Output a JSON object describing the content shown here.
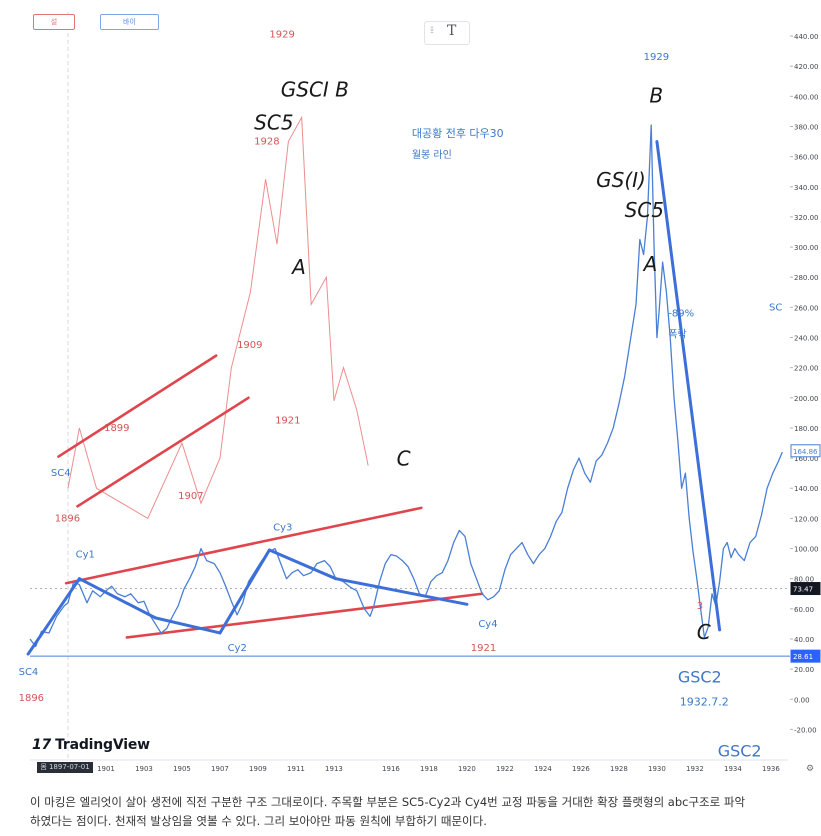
{
  "ui": {
    "top_button_1": "설",
    "top_button_2": "바이",
    "text_tool": "T",
    "tv_mark": "17",
    "tv_brand": "TradingView",
    "x_range_start": "몸 1897-07-01"
  },
  "caption": {
    "line1": "이 마킹은 엘리엇이 살아 생전에 직전 구분한 구조 그대로이다. 주목할 부분은 SC5-Cy2과 Cy4번 교정 파동을 거대한 확장 플랫형의 abc구조로 파악",
    "line2": "하였다는 점이다. 천재적 발상임을 엿볼 수 있다. 그리 보아야만 파동 원칙에 부합하기 때문이다."
  },
  "chart_data": {
    "type": "line",
    "x_label_left": "SC4",
    "xlim": [
      1897.0,
      1936.9
    ],
    "ylim": [
      -30,
      445
    ],
    "y_ticks": [
      440,
      420,
      400,
      380,
      360,
      340,
      320,
      300,
      280,
      260,
      240,
      220,
      200,
      180,
      160,
      140,
      120,
      100,
      80,
      60,
      40,
      20,
      0,
      -20
    ],
    "y_tick_labels": [
      "440.00",
      "420.00",
      "400.00",
      "380.00",
      "360.00",
      "340.00",
      "320.00",
      "300.00",
      "280.00",
      "260.00",
      "240.00",
      "220.00",
      "200.00",
      "180.00",
      "160.00",
      "140.00",
      "120.00",
      "100.00",
      "80.00",
      "60.00",
      "40.00",
      "20.00",
      "0.00",
      "-20.00"
    ],
    "x_ticks": [
      1899,
      1901,
      1903,
      1905,
      1907,
      1909,
      1911,
      1913,
      1916,
      1918,
      1920,
      1922,
      1924,
      1926,
      1928,
      1930,
      1932,
      1934,
      1936
    ],
    "price_tags": [
      {
        "label": "164.86",
        "value": 164.86,
        "style": "outline"
      },
      {
        "label": "73.47",
        "value": 73.47,
        "style": "dark"
      },
      {
        "label": "28.61",
        "value": 28.61,
        "style": "blue"
      }
    ],
    "horizontal_line": 28.61,
    "dashed_line": 73.47,
    "series": [
      {
        "color": "#4a7fd6",
        "points": [
          [
            1897.0,
            40
          ],
          [
            1897.3,
            35
          ],
          [
            1897.6,
            45
          ],
          [
            1898.0,
            44
          ],
          [
            1898.4,
            55
          ],
          [
            1898.8,
            62
          ],
          [
            1899.0,
            64
          ],
          [
            1899.3,
            78
          ],
          [
            1899.6,
            76
          ],
          [
            1900.0,
            64
          ],
          [
            1900.3,
            72
          ],
          [
            1900.7,
            68
          ],
          [
            1901.0,
            72
          ],
          [
            1901.3,
            75
          ],
          [
            1901.6,
            70
          ],
          [
            1902.0,
            68
          ],
          [
            1902.3,
            70
          ],
          [
            1902.7,
            64
          ],
          [
            1903.0,
            65
          ],
          [
            1903.3,
            56
          ],
          [
            1903.7,
            48
          ],
          [
            1903.9,
            44
          ],
          [
            1904.2,
            47
          ],
          [
            1904.5,
            55
          ],
          [
            1904.8,
            62
          ],
          [
            1905.1,
            73
          ],
          [
            1905.4,
            80
          ],
          [
            1905.7,
            88
          ],
          [
            1906.0,
            100
          ],
          [
            1906.3,
            92
          ],
          [
            1906.7,
            90
          ],
          [
            1907.0,
            84
          ],
          [
            1907.3,
            75
          ],
          [
            1907.6,
            65
          ],
          [
            1907.9,
            56
          ],
          [
            1908.2,
            64
          ],
          [
            1908.5,
            78
          ],
          [
            1908.9,
            86
          ],
          [
            1909.2,
            92
          ],
          [
            1909.6,
            98
          ],
          [
            1909.9,
            100
          ],
          [
            1910.2,
            90
          ],
          [
            1910.5,
            80
          ],
          [
            1910.8,
            84
          ],
          [
            1911.1,
            86
          ],
          [
            1911.4,
            82
          ],
          [
            1911.8,
            84
          ],
          [
            1912.1,
            90
          ],
          [
            1912.5,
            92
          ],
          [
            1912.8,
            88
          ],
          [
            1913.1,
            80
          ],
          [
            1913.5,
            78
          ],
          [
            1913.9,
            74
          ],
          [
            1914.2,
            72
          ],
          [
            1914.6,
            60
          ],
          [
            1914.9,
            55
          ],
          [
            1915.1,
            62
          ],
          [
            1915.4,
            78
          ],
          [
            1915.7,
            90
          ],
          [
            1916.0,
            96
          ],
          [
            1916.3,
            95
          ],
          [
            1916.6,
            92
          ],
          [
            1916.9,
            88
          ],
          [
            1917.2,
            80
          ],
          [
            1917.5,
            70
          ],
          [
            1917.8,
            68
          ],
          [
            1918.1,
            78
          ],
          [
            1918.4,
            82
          ],
          [
            1918.7,
            84
          ],
          [
            1919.0,
            92
          ],
          [
            1919.3,
            104
          ],
          [
            1919.6,
            112
          ],
          [
            1919.9,
            108
          ],
          [
            1920.2,
            90
          ],
          [
            1920.5,
            80
          ],
          [
            1920.8,
            70
          ],
          [
            1921.1,
            66
          ],
          [
            1921.4,
            68
          ],
          [
            1921.7,
            72
          ],
          [
            1922.0,
            86
          ],
          [
            1922.3,
            96
          ],
          [
            1922.6,
            100
          ],
          [
            1922.9,
            104
          ],
          [
            1923.2,
            96
          ],
          [
            1923.5,
            90
          ],
          [
            1923.8,
            96
          ],
          [
            1924.1,
            100
          ],
          [
            1924.4,
            108
          ],
          [
            1924.7,
            118
          ],
          [
            1925.0,
            124
          ],
          [
            1925.3,
            140
          ],
          [
            1925.6,
            152
          ],
          [
            1925.9,
            160
          ],
          [
            1926.2,
            150
          ],
          [
            1926.5,
            144
          ],
          [
            1926.8,
            158
          ],
          [
            1927.1,
            162
          ],
          [
            1927.4,
            170
          ],
          [
            1927.7,
            180
          ],
          [
            1928.0,
            196
          ],
          [
            1928.3,
            214
          ],
          [
            1928.6,
            238
          ],
          [
            1928.9,
            262
          ],
          [
            1929.1,
            305
          ],
          [
            1929.3,
            295
          ],
          [
            1929.5,
            320
          ],
          [
            1929.7,
            381
          ],
          [
            1929.85,
            300
          ],
          [
            1930.0,
            240
          ],
          [
            1930.1,
            255
          ],
          [
            1930.3,
            290
          ],
          [
            1930.5,
            270
          ],
          [
            1930.7,
            240
          ],
          [
            1930.9,
            200
          ],
          [
            1931.1,
            172
          ],
          [
            1931.3,
            140
          ],
          [
            1931.5,
            150
          ],
          [
            1931.7,
            120
          ],
          [
            1931.9,
            98
          ],
          [
            1932.1,
            80
          ],
          [
            1932.3,
            60
          ],
          [
            1932.5,
            41
          ],
          [
            1932.7,
            48
          ],
          [
            1932.9,
            70
          ],
          [
            1933.1,
            62
          ],
          [
            1933.3,
            78
          ],
          [
            1933.5,
            100
          ],
          [
            1933.7,
            104
          ],
          [
            1933.9,
            94
          ],
          [
            1934.1,
            100
          ],
          [
            1934.3,
            96
          ],
          [
            1934.6,
            92
          ],
          [
            1934.9,
            104
          ],
          [
            1935.2,
            108
          ],
          [
            1935.5,
            122
          ],
          [
            1935.8,
            140
          ],
          [
            1936.1,
            150
          ],
          [
            1936.4,
            158
          ],
          [
            1936.6,
            164
          ]
        ]
      }
    ],
    "overlay_wave": {
      "color": "#ec8e8e",
      "points": [
        [
          1899.0,
          140
        ],
        [
          1899.6,
          180
        ],
        [
          1900.5,
          140
        ],
        [
          1903.2,
          120
        ],
        [
          1905.0,
          170
        ],
        [
          1906.0,
          130
        ],
        [
          1907.0,
          160
        ],
        [
          1907.6,
          220
        ],
        [
          1908.6,
          270
        ],
        [
          1909.4,
          345
        ],
        [
          1910.0,
          302
        ],
        [
          1910.6,
          370
        ],
        [
          1911.3,
          386
        ],
        [
          1911.8,
          262
        ],
        [
          1912.6,
          280
        ],
        [
          1913.0,
          198
        ],
        [
          1913.5,
          220
        ],
        [
          1914.2,
          192
        ],
        [
          1914.8,
          155
        ]
      ]
    },
    "red_channel_lines": [
      {
        "from": [
          1898.5,
          161
        ],
        "to": [
          1906.8,
          228
        ]
      },
      {
        "from": [
          1899.5,
          128
        ],
        "to": [
          1908.5,
          200
        ]
      },
      {
        "from": [
          1898.9,
          77
        ],
        "to": [
          1917.6,
          127
        ]
      },
      {
        "from": [
          1902.1,
          41
        ],
        "to": [
          1920.8,
          70
        ]
      }
    ],
    "blue_wave_lines": [
      {
        "from": [
          1896.9,
          30
        ],
        "to": [
          1899.6,
          80
        ]
      },
      {
        "from": [
          1899.6,
          80
        ],
        "to": [
          1903.6,
          54
        ]
      },
      {
        "from": [
          1903.6,
          54
        ],
        "to": [
          1907.0,
          44
        ]
      },
      {
        "from": [
          1907.0,
          44
        ],
        "to": [
          1909.6,
          99
        ]
      },
      {
        "from": [
          1909.6,
          99
        ],
        "to": [
          1913.1,
          80
        ]
      },
      {
        "from": [
          1913.1,
          80
        ],
        "to": [
          1920.0,
          63
        ]
      },
      {
        "from": [
          1930.0,
          370
        ],
        "to": [
          1933.3,
          46
        ]
      }
    ],
    "labels": [
      {
        "text": "Cy1",
        "x": 1899.4,
        "y": 94,
        "color": "#3b78c8"
      },
      {
        "text": "Cy2",
        "x": 1907.4,
        "y": 32,
        "color": "#3b78c8"
      },
      {
        "text": "Cy3",
        "x": 1909.8,
        "y": 112,
        "color": "#3b78c8"
      },
      {
        "text": "Cy4",
        "x": 1920.6,
        "y": 48,
        "color": "#3b78c8"
      },
      {
        "text": "SC4",
        "x": 1898.1,
        "y": 148,
        "color": "#3b78c8"
      },
      {
        "text": "1896",
        "x": 1898.3,
        "y": 118,
        "color": "#d05656"
      },
      {
        "text": "SC4",
        "x": 1896.4,
        "y": 16,
        "color": "#3b78c8"
      },
      {
        "text": "1896",
        "x": 1896.4,
        "y": -1,
        "color": "#d05656"
      },
      {
        "text": "1921",
        "x": 1920.2,
        "y": 32,
        "color": "#d05656"
      },
      {
        "text": "1899",
        "x": 1900.9,
        "y": 178,
        "color": "#d05656"
      },
      {
        "text": "1909",
        "x": 1907.9,
        "y": 233,
        "color": "#d05656"
      },
      {
        "text": "1907",
        "x": 1904.8,
        "y": 133,
        "color": "#d05656"
      },
      {
        "text": "1921",
        "x": 1909.9,
        "y": 183,
        "color": "#d05656"
      },
      {
        "text": "1928",
        "x": 1908.8,
        "y": 368,
        "color": "#d05656"
      },
      {
        "text": "1929",
        "x": 1909.6,
        "y": 439,
        "color": "#d05656"
      },
      {
        "text": "대공황 전후 다우30",
        "x": 1917.1,
        "y": 373,
        "color": "#3b78c8"
      },
      {
        "text": "월봉 라인",
        "x": 1917.1,
        "y": 359,
        "color": "#3b78c8"
      },
      {
        "text": "1929",
        "x": 1929.3,
        "y": 424,
        "color": "#3b78c8"
      },
      {
        "text": "-89%",
        "x": 1930.6,
        "y": 254,
        "color": "#3b78c8"
      },
      {
        "text": "폭락",
        "x": 1930.6,
        "y": 240,
        "color": "#3b78c8"
      },
      {
        "text": "SC",
        "x": 1935.9,
        "y": 258,
        "color": "#3b78c8"
      },
      {
        "text": "GSC2",
        "x": 1931.1,
        "y": 11,
        "color": "#3b78c8"
      },
      {
        "text": "1932.7.2",
        "x": 1931.2,
        "y": -4,
        "color": "#3b78c8"
      },
      {
        "text": "GSC2",
        "x": 1933.2,
        "y": -38,
        "color": "#3b78c8"
      },
      {
        "text": "3",
        "x": 1932.1,
        "y": 60,
        "color": "#d05656"
      }
    ],
    "handwriting": [
      {
        "text": "GSCI  B",
        "x": 1910.2,
        "y": 400
      },
      {
        "text": "SC5",
        "x": 1908.8,
        "y": 378
      },
      {
        "text": "A",
        "x": 1910.8,
        "y": 282
      },
      {
        "text": "C",
        "x": 1916.3,
        "y": 155
      },
      {
        "text": "GS(I)",
        "x": 1926.8,
        "y": 340
      },
      {
        "text": "SC5",
        "x": 1928.3,
        "y": 320
      },
      {
        "text": "B",
        "x": 1929.6,
        "y": 396
      },
      {
        "text": "A",
        "x": 1929.3,
        "y": 284
      },
      {
        "text": "C",
        "x": 1932.1,
        "y": 40
      }
    ]
  }
}
